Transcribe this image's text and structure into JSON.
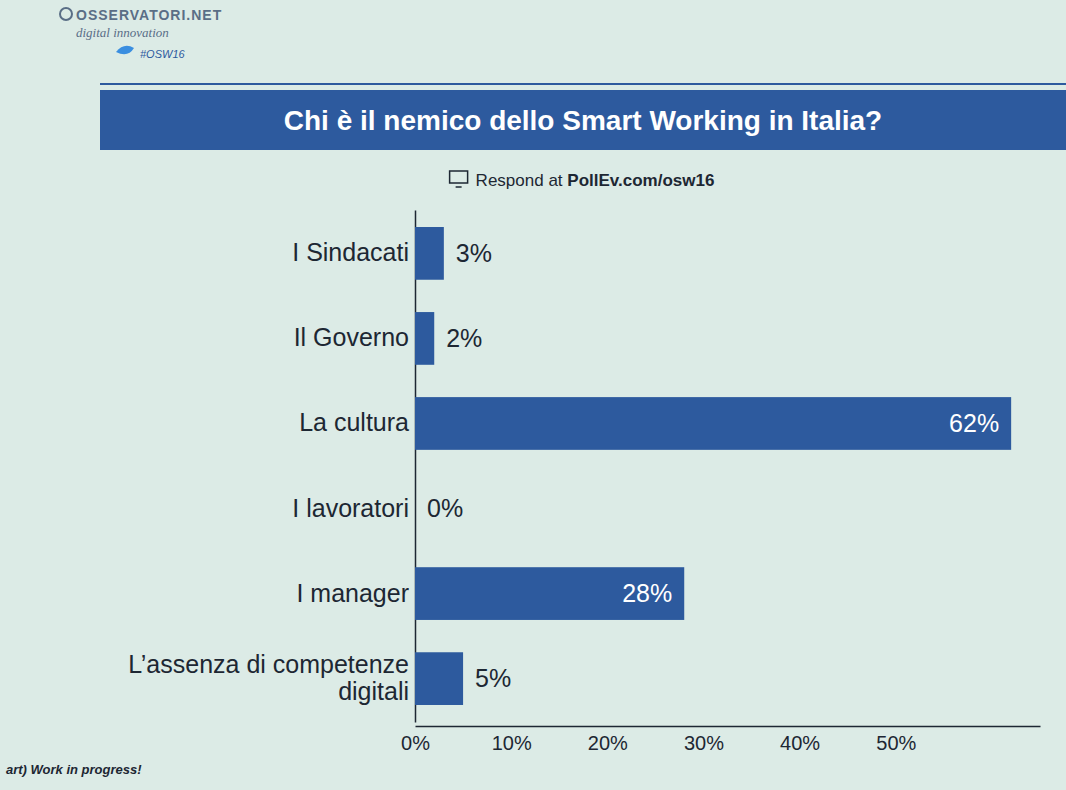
{
  "header": {
    "brand": "OSSERVATORI.NET",
    "tagline": "digital innovation",
    "hashtag": "#OSW16"
  },
  "footer": {
    "text": "art) Work in progress!"
  },
  "chart_data": {
    "type": "bar",
    "orientation": "horizontal",
    "title": "Chi è il nemico dello Smart Working in Italia?",
    "subtitle": "Respond at PollEv.com/osw16",
    "categories": [
      "I Sindacati",
      "Il Governo",
      "La cultura",
      "I lavoratori",
      "I manager",
      "L’assenza di competenze digitali"
    ],
    "values": [
      3,
      2,
      62,
      0,
      28,
      5
    ],
    "value_labels": [
      "3%",
      "2%",
      "62%",
      "0%",
      "28%",
      "5%"
    ],
    "color": "#2d5a9e",
    "xlim": [
      0,
      65
    ],
    "xticks": [
      {
        "value": 0,
        "label": "0%"
      },
      {
        "value": 10,
        "label": "10%"
      },
      {
        "value": 20,
        "label": "20%"
      },
      {
        "value": 30,
        "label": "30%"
      },
      {
        "value": 40,
        "label": "40%"
      },
      {
        "value": 50,
        "label": "50%"
      }
    ],
    "data_labels": true,
    "grid": false
  }
}
